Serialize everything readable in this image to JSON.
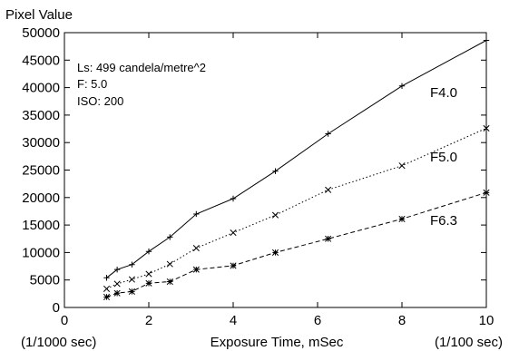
{
  "chart_data": {
    "type": "line",
    "ylabel": "Pixel Value",
    "xlabel": "Exposure Time, mSec",
    "x_note_left": "(1/1000 sec)",
    "x_note_right": "(1/100 sec)",
    "xlim": [
      0,
      10
    ],
    "ylim": [
      0,
      50000
    ],
    "xticks": [
      0,
      2,
      4,
      6,
      8,
      10
    ],
    "yticks": [
      0,
      5000,
      10000,
      15000,
      20000,
      25000,
      30000,
      35000,
      40000,
      45000,
      50000
    ],
    "grid": false,
    "annotations": [
      "Ls: 499 candela/metre^2",
      "F: 5.0",
      "ISO: 200"
    ],
    "x": [
      1,
      1.25,
      1.6,
      2,
      2.5,
      3.125,
      4,
      5,
      6.25,
      8,
      10
    ],
    "series": [
      {
        "name": "F4.0",
        "marker": "plus",
        "line": "solid",
        "values": [
          5400,
          6900,
          7800,
          10200,
          12800,
          17000,
          19800,
          24800,
          31600,
          40300,
          48600
        ]
      },
      {
        "name": "F5.0",
        "marker": "x",
        "line": "dotted",
        "values": [
          3400,
          4300,
          5100,
          6100,
          7900,
          10800,
          13600,
          16800,
          21400,
          25800,
          32600
        ]
      },
      {
        "name": "F6.3",
        "marker": "star",
        "line": "dashed",
        "values": [
          1900,
          2600,
          2900,
          4400,
          4700,
          6900,
          7600,
          10000,
          12500,
          16100,
          20900
        ]
      }
    ]
  }
}
